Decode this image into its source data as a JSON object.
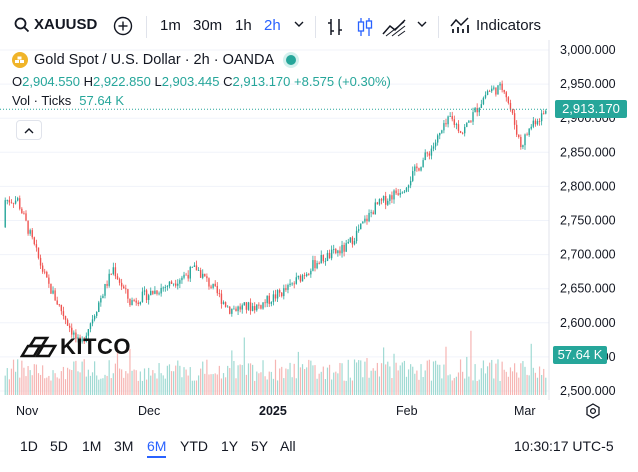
{
  "toolbar": {
    "symbol": "XAUUSD",
    "timeframes": [
      "1m",
      "30m",
      "1h",
      "2h"
    ],
    "active_timeframe": "2h",
    "indicators_label": "Indicators",
    "icons": [
      "search-icon",
      "plus-circle-icon",
      "chevron-down-icon",
      "bars-icon",
      "candles-icon",
      "area-icon",
      "indicators-icon"
    ]
  },
  "legend": {
    "title": "Gold Spot / U.S. Dollar · 2h · OANDA",
    "open_label": "O",
    "open": "2,904.550",
    "high_label": "H",
    "high": "2,922.850",
    "low_label": "L",
    "low": "2,903.445",
    "close_label": "C",
    "close": "2,913.170",
    "change": "+8.575 (+0.30%)",
    "vol_label": "Vol · Ticks",
    "vol_value": "57.64 K"
  },
  "price_axis": {
    "ticks": [
      "3,000.000",
      "2,950.000",
      "2,900.000",
      "2,850.000",
      "2,800.000",
      "2,750.000",
      "2,700.000",
      "2,650.000",
      "2,600.000",
      "2,550.000",
      "2,500.000"
    ],
    "current_price": "2,913.170",
    "current_volume": "57.64 K"
  },
  "time_axis": {
    "labels": [
      "Nov",
      "Dec",
      "2025",
      "Feb",
      "Mar"
    ]
  },
  "watermark": "KITCO",
  "bottom": {
    "ranges": [
      "1D",
      "5D",
      "1M",
      "3M",
      "6M",
      "YTD",
      "1Y",
      "5Y",
      "All"
    ],
    "active_range": "6M",
    "clock": "10:30:17 UTC-5"
  },
  "colors": {
    "up": "#26a69a",
    "down": "#ef5350",
    "accent": "#2962ff"
  },
  "chart_data": {
    "type": "candlestick",
    "ylim": [
      2500,
      3000
    ],
    "anchors": [
      {
        "x": "Oct 16",
        "y": 2740
      },
      {
        "x": "Oct 22",
        "y": 2780
      },
      {
        "x": "Oct 30",
        "y": 2780
      },
      {
        "x": "Nov 6",
        "y": 2660
      },
      {
        "x": "Nov 14",
        "y": 2565
      },
      {
        "x": "Nov 22",
        "y": 2680
      },
      {
        "x": "Nov 26",
        "y": 2630
      },
      {
        "x": "Dec 5",
        "y": 2655
      },
      {
        "x": "Dec 12",
        "y": 2680
      },
      {
        "x": "Dec 20",
        "y": 2620
      },
      {
        "x": "Dec 27",
        "y": 2625
      },
      {
        "x": "Jan 3",
        "y": 2650
      },
      {
        "x": "Jan 10",
        "y": 2690
      },
      {
        "x": "Jan 17",
        "y": 2710
      },
      {
        "x": "Jan 24",
        "y": 2770
      },
      {
        "x": "Jan 31",
        "y": 2800
      },
      {
        "x": "Feb 7",
        "y": 2860
      },
      {
        "x": "Feb 11",
        "y": 2900
      },
      {
        "x": "Feb 14",
        "y": 2880
      },
      {
        "x": "Feb 20",
        "y": 2940
      },
      {
        "x": "Feb 24",
        "y": 2945
      },
      {
        "x": "Feb 28",
        "y": 2860
      },
      {
        "x": "Mar 3",
        "y": 2895
      },
      {
        "x": "Mar 7",
        "y": 2913
      }
    ]
  }
}
